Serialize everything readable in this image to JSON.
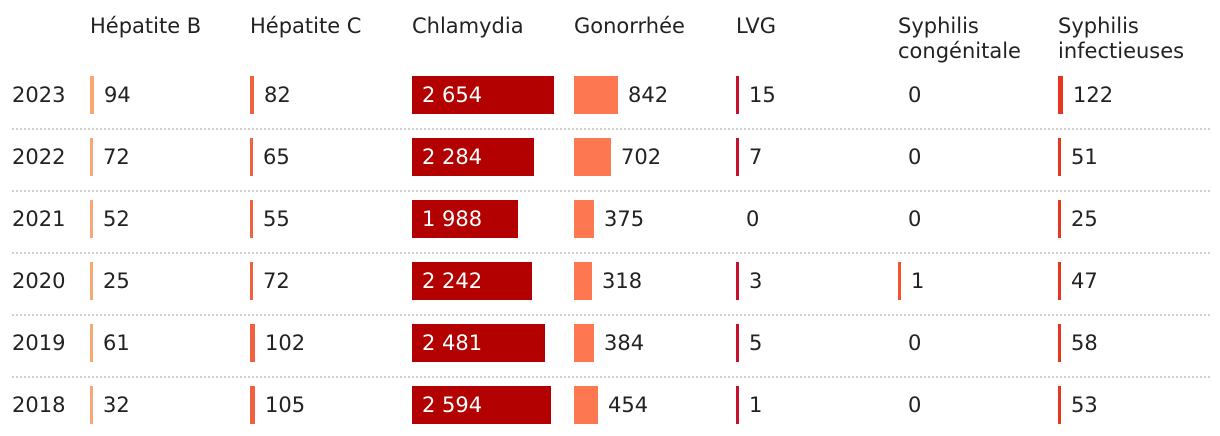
{
  "colors": {
    "hepatite_b": "#f9a574",
    "hepatite_c": "#f2613f",
    "chlamydia": "#b30000",
    "gonorrhee": "#fd7751",
    "lvg": "#c8102e",
    "syphilis_congenitale": "#f3522b",
    "syphilis_infectieuses": "#e8351f"
  },
  "chart_data": {
    "type": "table",
    "columns": [
      {
        "key": "hepatite_b",
        "label": "Hépatite B"
      },
      {
        "key": "hepatite_c",
        "label": "Hépatite C"
      },
      {
        "key": "chlamydia",
        "label": "Chlamydia"
      },
      {
        "key": "gonorrhee",
        "label": "Gonorrhée"
      },
      {
        "key": "lvg",
        "label": "LVG"
      },
      {
        "key": "syphilis_congenitale",
        "label": "Syphilis\ncongénitale"
      },
      {
        "key": "syphilis_infectieuses",
        "label": "Syphilis\ninfectieuses"
      }
    ],
    "rows": [
      {
        "year": "2023",
        "values": [
          94,
          82,
          2654,
          842,
          15,
          0,
          122
        ],
        "display": [
          "94",
          "82",
          "2 654",
          "842",
          "15",
          "0",
          "122"
        ]
      },
      {
        "year": "2022",
        "values": [
          72,
          65,
          2284,
          702,
          7,
          0,
          51
        ],
        "display": [
          "72",
          "65",
          "2 284",
          "702",
          "7",
          "0",
          "51"
        ]
      },
      {
        "year": "2021",
        "values": [
          52,
          55,
          1988,
          375,
          0,
          0,
          25
        ],
        "display": [
          "52",
          "55",
          "1 988",
          "375",
          "0",
          "0",
          "25"
        ]
      },
      {
        "year": "2020",
        "values": [
          25,
          72,
          2242,
          318,
          3,
          1,
          47
        ],
        "display": [
          "25",
          "72",
          "2 242",
          "318",
          "3",
          "1",
          "47"
        ]
      },
      {
        "year": "2019",
        "values": [
          61,
          102,
          2481,
          384,
          5,
          0,
          58
        ],
        "display": [
          "61",
          "102",
          "2 481",
          "384",
          "5",
          "0",
          "58"
        ]
      },
      {
        "year": "2018",
        "values": [
          32,
          105,
          2594,
          454,
          1,
          0,
          53
        ],
        "display": [
          "32",
          "105",
          "2 594",
          "454",
          "1",
          "0",
          "53"
        ]
      }
    ]
  }
}
